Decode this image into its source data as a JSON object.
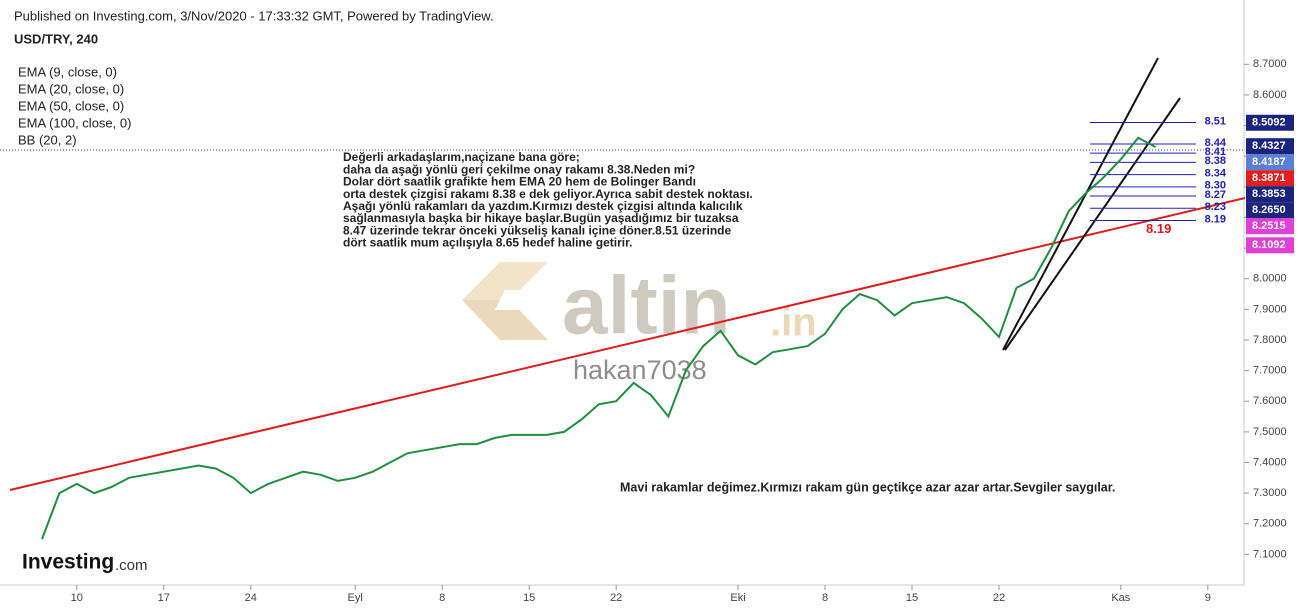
{
  "header": {
    "published": "Published on Investing.com, 3/Nov/2020 - 17:33:32 GMT, Powered by TradingView."
  },
  "legend": [
    "EMA (9, close, 0)",
    "EMA (20, close, 0)",
    "EMA (50, close, 0)",
    "EMA (100, close, 0)",
    "BB (20, 2)"
  ],
  "annotations": {
    "main": [
      "Değerli arkadaşlarım,naçizane bana göre;",
      "daha da aşağı yönlü geri çekilme onay rakamı 8.38.Neden mi?",
      "Dolar dört saatlik grafikte  hem EMA 20 hem de Bolinger Bandı",
      "orta destek çizgisi rakamı 8.38 e dek geliyor.Ayrıca sabit destek noktası.",
      "Aşağı yönlü rakamları da yazdım.Kırmızı destek çizgisi altında kalıcılık",
      "sağlanmasıyla başka bir hikaye başlar.Bugün yaşadığımız bir tuzaksa",
      "8.47 üzerinde tekrar önceki yükseliş kanalı içine döner.8.51 üzerinde",
      "dört saatlik mum açılışıyla 8.65 hedef haline getirir."
    ],
    "bottom": "Mavi rakamlar değimez.Kırmızı  rakam gün geçtikçe azar azar artar.Sevgiler saygılar."
  },
  "watermarks": {
    "brand": "altin",
    "brand_suffix": ".in",
    "user": "hakan7038",
    "logo": "Investing",
    "logo_suffix": ".com"
  },
  "chart_data": {
    "type": "line",
    "title": "USD/TRY, 240",
    "color": "#1e8f3e",
    "categories": [
      null,
      null,
      "10",
      null,
      null,
      null,
      null,
      "17",
      null,
      null,
      null,
      null,
      "24",
      null,
      null,
      null,
      null,
      null,
      "Eyl",
      null,
      null,
      null,
      null,
      "8",
      null,
      null,
      null,
      null,
      "15",
      null,
      null,
      null,
      null,
      "22",
      null,
      null,
      null,
      null,
      null,
      null,
      "Eki",
      null,
      null,
      null,
      null,
      "8",
      null,
      null,
      null,
      null,
      "15",
      null,
      null,
      null,
      null,
      "22",
      null,
      null,
      null,
      null,
      null,
      null,
      "Kas",
      null,
      null,
      null,
      null,
      "9",
      null
    ],
    "values": [
      7.15,
      7.3,
      7.33,
      7.3,
      7.32,
      7.35,
      7.36,
      7.37,
      7.38,
      7.39,
      7.38,
      7.35,
      7.3,
      7.33,
      7.35,
      7.37,
      7.36,
      7.34,
      7.35,
      7.37,
      7.4,
      7.43,
      7.44,
      7.45,
      7.46,
      7.46,
      7.48,
      7.49,
      7.49,
      7.49,
      7.5,
      7.54,
      7.59,
      7.6,
      7.66,
      7.62,
      7.55,
      7.7,
      7.78,
      7.83,
      7.75,
      7.72,
      7.76,
      7.77,
      7.78,
      7.82,
      7.9,
      7.95,
      7.93,
      7.88,
      7.92,
      7.93,
      7.94,
      7.92,
      7.87,
      7.81,
      7.97,
      8.0,
      8.1,
      8.22,
      8.28,
      8.33,
      8.39,
      8.46,
      8.43,
      null,
      null,
      null,
      null
    ],
    "ylim": [
      7.0,
      8.91
    ],
    "yticks": [
      {
        "value": 7.1,
        "label": "7.1000"
      },
      {
        "value": 7.2,
        "label": "7.2000"
      },
      {
        "value": 7.3,
        "label": "7.3000"
      },
      {
        "value": 7.4,
        "label": "7.4000"
      },
      {
        "value": 7.5,
        "label": "7.5000"
      },
      {
        "value": 7.6,
        "label": "7.6000"
      },
      {
        "value": 7.7,
        "label": "7.7000"
      },
      {
        "value": 7.8,
        "label": "7.8000"
      },
      {
        "value": 7.9,
        "label": "7.9000"
      },
      {
        "value": 8.0,
        "label": "8.0000"
      },
      {
        "value": 8.1,
        "label": "8.1000"
      },
      {
        "value": 8.2,
        "label": "8.2000"
      },
      {
        "value": 8.3,
        "label": "8.3000"
      },
      {
        "value": 8.4,
        "label": "8.4000"
      },
      {
        "value": 8.5,
        "label": "8.5000"
      },
      {
        "value": 8.6,
        "label": "8.6000"
      },
      {
        "value": 8.7,
        "label": "8.7000"
      }
    ],
    "levels": [
      8.51,
      8.44,
      8.41,
      8.38,
      8.34,
      {
        "value": 8.3,
        "label": "8.30"
      },
      8.27,
      8.23,
      8.19
    ],
    "level_color": "#2020b8",
    "red_level": 8.19,
    "price_labels": [
      {
        "value": 8.5092,
        "color": "#1a237e"
      },
      {
        "value": 8.4327,
        "color": "#1a237e"
      },
      {
        "value": 8.4187,
        "color": "#5b7fd4"
      },
      {
        "value": 8.3871,
        "color": "#e02020"
      },
      {
        "value": 8.3853,
        "color": "#1a237e"
      },
      {
        "value": {
          "value": 8.265,
          "label": "8.2650"
        },
        "color": "#1a237e"
      },
      {
        "value": 8.2515,
        "color": "#e23fd8"
      },
      {
        "value": 8.1092,
        "color": "#e23fd8"
      }
    ]
  }
}
